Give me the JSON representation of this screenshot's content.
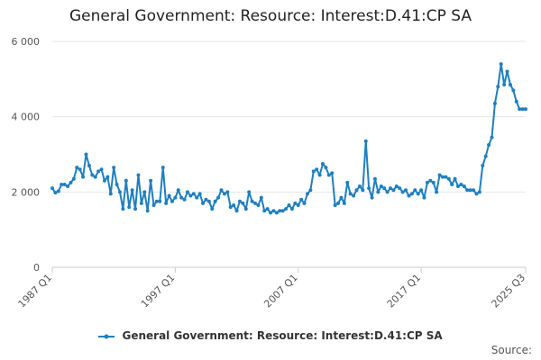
{
  "chart_data": {
    "type": "line",
    "title": "General Government: Resource: Interest:D.41:CP SA",
    "xlabel": "",
    "ylabel": "",
    "ylim": [
      0,
      6000
    ],
    "y_ticks": [
      "0",
      "2 000",
      "4 000",
      "6 000"
    ],
    "y_tick_values": [
      0,
      2000,
      4000,
      6000
    ],
    "x_tick_labels": [
      "1987 Q1",
      "1997 Q1",
      "2007 Q1",
      "2017 Q1",
      "2025 Q3"
    ],
    "grid": true,
    "legend_position": "bottom",
    "color": "#1f7fbf",
    "series": [
      {
        "name": "General Government: Resource: Interest:D.41:CP SA",
        "points": [
          [
            "1987 Q1",
            2100
          ],
          [
            "1987 Q2",
            1980
          ],
          [
            "1987 Q3",
            2020
          ],
          [
            "1987 Q4",
            2200
          ],
          [
            "1988 Q1",
            2200
          ],
          [
            "1988 Q2",
            2150
          ],
          [
            "1988 Q3",
            2250
          ],
          [
            "1988 Q4",
            2350
          ],
          [
            "1989 Q1",
            2650
          ],
          [
            "1989 Q2",
            2600
          ],
          [
            "1989 Q3",
            2400
          ],
          [
            "1989 Q4",
            3000
          ],
          [
            "1990 Q1",
            2700
          ],
          [
            "1990 Q2",
            2450
          ],
          [
            "1990 Q3",
            2400
          ],
          [
            "1990 Q4",
            2550
          ],
          [
            "1991 Q1",
            2600
          ],
          [
            "1991 Q2",
            2300
          ],
          [
            "1991 Q3",
            2400
          ],
          [
            "1991 Q4",
            1950
          ],
          [
            "1992 Q1",
            2650
          ],
          [
            "1992 Q2",
            2200
          ],
          [
            "1992 Q3",
            2000
          ],
          [
            "1992 Q4",
            1550
          ],
          [
            "1993 Q1",
            2300
          ],
          [
            "1993 Q2",
            1600
          ],
          [
            "1993 Q3",
            2050
          ],
          [
            "1993 Q4",
            1550
          ],
          [
            "1994 Q1",
            2450
          ],
          [
            "1994 Q2",
            1700
          ],
          [
            "1994 Q3",
            2000
          ],
          [
            "1994 Q4",
            1500
          ],
          [
            "1995 Q1",
            2300
          ],
          [
            "1995 Q2",
            1650
          ],
          [
            "1995 Q3",
            1750
          ],
          [
            "1995 Q4",
            1750
          ],
          [
            "1996 Q1",
            2650
          ],
          [
            "1996 Q2",
            1700
          ],
          [
            "1996 Q3",
            1900
          ],
          [
            "1996 Q4",
            1750
          ],
          [
            "1997 Q1",
            1850
          ],
          [
            "1997 Q2",
            2050
          ],
          [
            "1997 Q3",
            1850
          ],
          [
            "1997 Q4",
            1800
          ],
          [
            "1998 Q1",
            2000
          ],
          [
            "1998 Q2",
            1900
          ],
          [
            "1998 Q3",
            1950
          ],
          [
            "1998 Q4",
            1850
          ],
          [
            "1999 Q1",
            1950
          ],
          [
            "1999 Q2",
            1700
          ],
          [
            "1999 Q3",
            1800
          ],
          [
            "1999 Q4",
            1750
          ],
          [
            "2000 Q1",
            1550
          ],
          [
            "2000 Q2",
            1750
          ],
          [
            "2000 Q3",
            1850
          ],
          [
            "2000 Q4",
            2050
          ],
          [
            "2001 Q1",
            1950
          ],
          [
            "2001 Q2",
            2000
          ],
          [
            "2001 Q3",
            1600
          ],
          [
            "2001 Q4",
            1650
          ],
          [
            "2002 Q1",
            1500
          ],
          [
            "2002 Q2",
            1750
          ],
          [
            "2002 Q3",
            1700
          ],
          [
            "2002 Q4",
            1550
          ],
          [
            "2003 Q1",
            2000
          ],
          [
            "2003 Q2",
            1750
          ],
          [
            "2003 Q3",
            1700
          ],
          [
            "2003 Q4",
            1650
          ],
          [
            "2004 Q1",
            1850
          ],
          [
            "2004 Q2",
            1500
          ],
          [
            "2004 Q3",
            1550
          ],
          [
            "2004 Q4",
            1450
          ],
          [
            "2005 Q1",
            1500
          ],
          [
            "2005 Q2",
            1450
          ],
          [
            "2005 Q3",
            1500
          ],
          [
            "2005 Q4",
            1500
          ],
          [
            "2006 Q1",
            1550
          ],
          [
            "2006 Q2",
            1650
          ],
          [
            "2006 Q3",
            1550
          ],
          [
            "2006 Q4",
            1700
          ],
          [
            "2007 Q1",
            1650
          ],
          [
            "2007 Q2",
            1800
          ],
          [
            "2007 Q3",
            1700
          ],
          [
            "2007 Q4",
            1950
          ],
          [
            "2008 Q1",
            2050
          ],
          [
            "2008 Q2",
            2550
          ],
          [
            "2008 Q3",
            2600
          ],
          [
            "2008 Q4",
            2450
          ],
          [
            "2009 Q1",
            2750
          ],
          [
            "2009 Q2",
            2650
          ],
          [
            "2009 Q3",
            2450
          ],
          [
            "2009 Q4",
            2500
          ],
          [
            "2010 Q1",
            1650
          ],
          [
            "2010 Q2",
            1700
          ],
          [
            "2010 Q3",
            1850
          ],
          [
            "2010 Q4",
            1700
          ],
          [
            "2011 Q1",
            2250
          ],
          [
            "2011 Q2",
            1950
          ],
          [
            "2011 Q3",
            1900
          ],
          [
            "2011 Q4",
            2050
          ],
          [
            "2012 Q1",
            2150
          ],
          [
            "2012 Q2",
            2050
          ],
          [
            "2012 Q3",
            3350
          ],
          [
            "2012 Q4",
            2100
          ],
          [
            "2013 Q1",
            1850
          ],
          [
            "2013 Q2",
            2350
          ],
          [
            "2013 Q3",
            2000
          ],
          [
            "2013 Q4",
            2150
          ],
          [
            "2014 Q1",
            2100
          ],
          [
            "2014 Q2",
            2000
          ],
          [
            "2014 Q3",
            2100
          ],
          [
            "2014 Q4",
            2050
          ],
          [
            "2015 Q1",
            2150
          ],
          [
            "2015 Q2",
            2100
          ],
          [
            "2015 Q3",
            2000
          ],
          [
            "2015 Q4",
            2050
          ],
          [
            "2016 Q1",
            1900
          ],
          [
            "2016 Q2",
            1950
          ],
          [
            "2016 Q3",
            2050
          ],
          [
            "2016 Q4",
            1950
          ],
          [
            "2017 Q1",
            2050
          ],
          [
            "2017 Q2",
            1850
          ],
          [
            "2017 Q3",
            2250
          ],
          [
            "2017 Q4",
            2300
          ],
          [
            "2018 Q1",
            2250
          ],
          [
            "2018 Q2",
            2000
          ],
          [
            "2018 Q3",
            2450
          ],
          [
            "2018 Q4",
            2400
          ],
          [
            "2019 Q1",
            2400
          ],
          [
            "2019 Q2",
            2350
          ],
          [
            "2019 Q3",
            2200
          ],
          [
            "2019 Q4",
            2350
          ],
          [
            "2020 Q1",
            2150
          ],
          [
            "2020 Q2",
            2200
          ],
          [
            "2020 Q3",
            2150
          ],
          [
            "2020 Q4",
            2050
          ],
          [
            "2021 Q1",
            2050
          ],
          [
            "2021 Q2",
            2050
          ],
          [
            "2021 Q3",
            1950
          ],
          [
            "2021 Q4",
            2000
          ],
          [
            "2022 Q1",
            2700
          ],
          [
            "2022 Q2",
            2950
          ],
          [
            "2022 Q3",
            3250
          ],
          [
            "2022 Q4",
            3450
          ],
          [
            "2023 Q1",
            4350
          ],
          [
            "2023 Q2",
            4800
          ],
          [
            "2023 Q3",
            5400
          ],
          [
            "2023 Q4",
            4850
          ],
          [
            "2024 Q1",
            5200
          ],
          [
            "2024 Q2",
            4850
          ],
          [
            "2024 Q3",
            4700
          ],
          [
            "2024 Q4",
            4400
          ],
          [
            "2025 Q1",
            4200
          ],
          [
            "2025 Q2",
            4200
          ],
          [
            "2025 Q3",
            4200
          ]
        ]
      }
    ]
  },
  "source_label": "Source:"
}
